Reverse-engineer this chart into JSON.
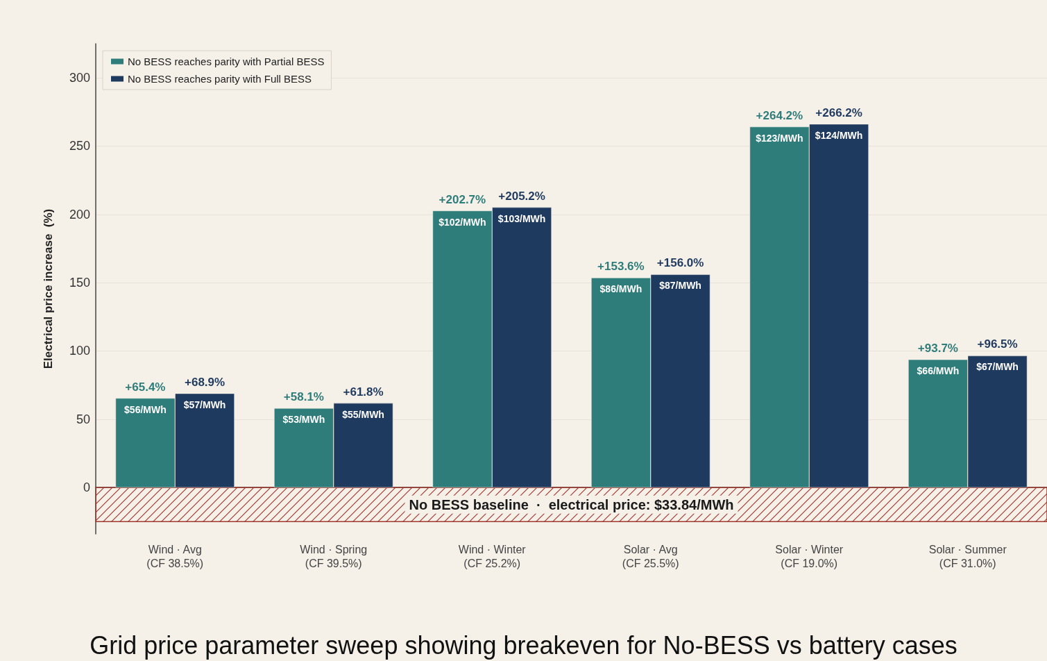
{
  "chart_data": {
    "type": "bar",
    "title": "Grid price parameter sweep showing breakeven for No-BESS vs battery cases",
    "ylabel": "Electrical price increase  (%)",
    "categories": [
      "Wind · Avg\n(CF 38.5%)",
      "Wind · Spring\n(CF 39.5%)",
      "Wind · Winter\n(CF 25.2%)",
      "Solar · Avg\n(CF 25.5%)",
      "Solar · Winter\n(CF 19.0%)",
      "Solar · Summer\n(CF 31.0%)"
    ],
    "series": [
      {
        "name": "No BESS reaches parity with Partial BESS",
        "color": "#2e7d7a",
        "values": [
          65.4,
          58.1,
          202.7,
          153.6,
          264.2,
          93.7
        ],
        "value_labels": [
          "+65.4%",
          "+58.1%",
          "+202.7%",
          "+153.6%",
          "+264.2%",
          "+93.7%"
        ]
      },
      {
        "name": "No BESS reaches parity with Full BESS",
        "color": "#1f3a5f",
        "values": [
          68.9,
          61.8,
          205.2,
          156.0,
          266.2,
          96.5
        ],
        "value_labels": [
          "+68.9%",
          "+61.8%",
          "+205.2%",
          "+156.0%",
          "+266.2%",
          "+96.5%"
        ]
      }
    ],
    "annotations": [
      {
        "text": "$56/MWh",
        "x": "Wind · Avg\n(CF 38.5%)",
        "y": 65.4
      },
      {
        "text": "$57/MWh",
        "x": "Wind · Avg\n(CF 38.5%)",
        "y": 68.9
      },
      {
        "text": "$53/MWh",
        "x": "Wind · Spring\n(CF 39.5%)",
        "y": 58.1
      },
      {
        "text": "$55/MWh",
        "x": "Wind · Spring\n(CF 39.5%)",
        "y": 61.8
      },
      {
        "text": "$102/MWh",
        "x": "Wind · Winter\n(CF 25.2%)",
        "y": 202.7
      },
      {
        "text": "$103/MWh",
        "x": "Wind · Winter\n(CF 25.2%)",
        "y": 205.2
      },
      {
        "text": "$86/MWh",
        "x": "Solar · Avg\n(CF 25.5%)",
        "y": 153.6
      },
      {
        "text": "$87/MWh",
        "x": "Solar · Avg\n(CF 25.5%)",
        "y": 156.0
      },
      {
        "text": "$123/MWh",
        "x": "Solar · Winter\n(CF 19.0%)",
        "y": 264.2
      },
      {
        "text": "$124/MWh",
        "x": "Solar · Winter\n(CF 19.0%)",
        "y": 266.2
      },
      {
        "text": "$66/MWh",
        "x": "Solar · Summer\n(CF 31.0%)",
        "y": 93.7
      },
      {
        "text": "$67/MWh",
        "x": "Solar · Summer\n(CF 31.0%)",
        "y": 96.5
      }
    ],
    "bands": [
      {
        "axis": "y",
        "from": -25,
        "to": 0,
        "label": "No BESS baseline  ·  electrical price: $33.84/MWh",
        "color": "#a0392f"
      }
    ],
    "ylim": [
      -34,
      325
    ],
    "yticks": [
      0,
      50,
      100,
      150,
      200,
      250,
      300
    ],
    "grid": "y",
    "legend": "top left"
  }
}
